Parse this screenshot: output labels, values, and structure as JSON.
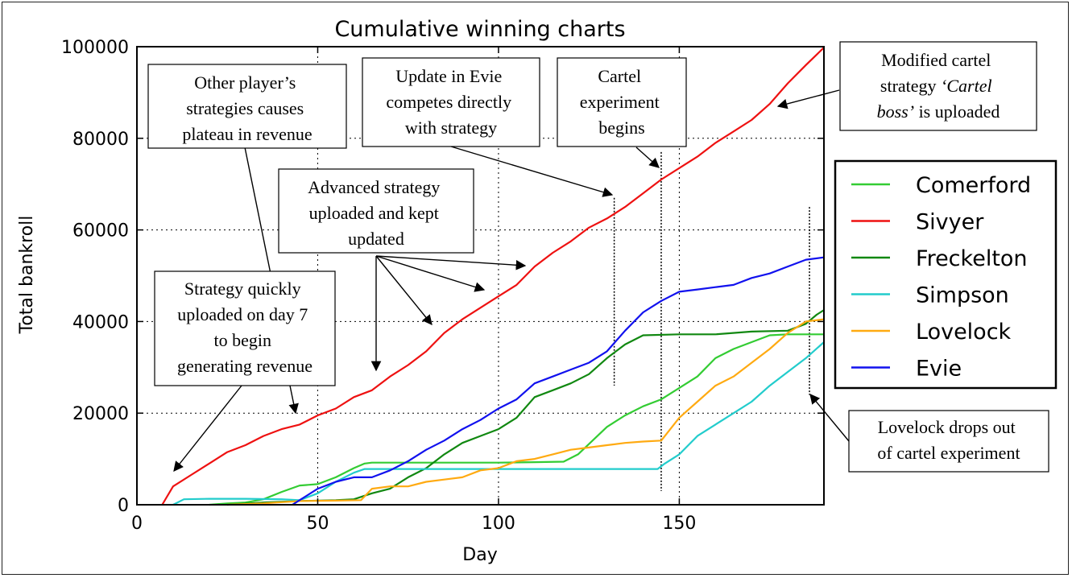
{
  "chart_data": {
    "type": "line",
    "title": "Cumulative winning charts",
    "xlabel": "Day",
    "ylabel": "Total bankroll",
    "xlim": [
      0,
      190
    ],
    "ylim": [
      0,
      100000
    ],
    "xticks": [
      0,
      50,
      100,
      150
    ],
    "yticks": [
      0,
      20000,
      40000,
      60000,
      80000,
      100000
    ],
    "grid": true,
    "legend_position": "right",
    "series": [
      {
        "name": "Comerford",
        "color": "#33cc33",
        "points": [
          [
            20,
            0
          ],
          [
            25,
            300
          ],
          [
            30,
            500
          ],
          [
            35,
            1200
          ],
          [
            40,
            2800
          ],
          [
            45,
            4200
          ],
          [
            50,
            4500
          ],
          [
            55,
            6000
          ],
          [
            60,
            8000
          ],
          [
            63,
            9000
          ],
          [
            65,
            9200
          ],
          [
            75,
            9200
          ],
          [
            85,
            9200
          ],
          [
            95,
            9200
          ],
          [
            100,
            9200
          ],
          [
            110,
            9300
          ],
          [
            118,
            9400
          ],
          [
            122,
            11000
          ],
          [
            126,
            14000
          ],
          [
            130,
            17000
          ],
          [
            135,
            19500
          ],
          [
            140,
            21500
          ],
          [
            145,
            23000
          ],
          [
            150,
            25500
          ],
          [
            155,
            28000
          ],
          [
            160,
            32000
          ],
          [
            165,
            34000
          ],
          [
            170,
            35500
          ],
          [
            175,
            37000
          ],
          [
            180,
            37200
          ],
          [
            190,
            37200
          ]
        ]
      },
      {
        "name": "Sivyer",
        "color": "#ee1111",
        "points": [
          [
            7,
            0
          ],
          [
            10,
            4000
          ],
          [
            15,
            6500
          ],
          [
            20,
            9000
          ],
          [
            25,
            11500
          ],
          [
            30,
            13000
          ],
          [
            35,
            15000
          ],
          [
            40,
            16500
          ],
          [
            45,
            17500
          ],
          [
            50,
            19500
          ],
          [
            55,
            21000
          ],
          [
            60,
            23500
          ],
          [
            65,
            25000
          ],
          [
            70,
            28000
          ],
          [
            75,
            30500
          ],
          [
            80,
            33500
          ],
          [
            85,
            37500
          ],
          [
            90,
            40500
          ],
          [
            95,
            43000
          ],
          [
            100,
            45500
          ],
          [
            105,
            48000
          ],
          [
            110,
            52000
          ],
          [
            115,
            55000
          ],
          [
            120,
            57500
          ],
          [
            125,
            60500
          ],
          [
            130,
            62500
          ],
          [
            135,
            65000
          ],
          [
            140,
            68000
          ],
          [
            145,
            71000
          ],
          [
            150,
            73500
          ],
          [
            155,
            76000
          ],
          [
            160,
            79000
          ],
          [
            165,
            81500
          ],
          [
            170,
            84000
          ],
          [
            175,
            87500
          ],
          [
            180,
            92000
          ],
          [
            185,
            96000
          ],
          [
            190,
            99800
          ]
        ]
      },
      {
        "name": "Freckelton",
        "color": "#118811",
        "points": [
          [
            25,
            0
          ],
          [
            35,
            500
          ],
          [
            45,
            800
          ],
          [
            55,
            1000
          ],
          [
            60,
            1200
          ],
          [
            65,
            2500
          ],
          [
            70,
            3500
          ],
          [
            75,
            6000
          ],
          [
            80,
            8000
          ],
          [
            85,
            11000
          ],
          [
            90,
            13500
          ],
          [
            95,
            15000
          ],
          [
            100,
            16500
          ],
          [
            105,
            19000
          ],
          [
            110,
            23500
          ],
          [
            115,
            25000
          ],
          [
            120,
            26500
          ],
          [
            125,
            28500
          ],
          [
            130,
            32000
          ],
          [
            135,
            35000
          ],
          [
            140,
            37000
          ],
          [
            150,
            37200
          ],
          [
            160,
            37200
          ],
          [
            170,
            37800
          ],
          [
            180,
            38000
          ],
          [
            185,
            39500
          ],
          [
            188,
            41500
          ],
          [
            190,
            42500
          ]
        ]
      },
      {
        "name": "Simpson",
        "color": "#22cccc",
        "points": [
          [
            10,
            0
          ],
          [
            13,
            1200
          ],
          [
            20,
            1300
          ],
          [
            30,
            1300
          ],
          [
            40,
            1200
          ],
          [
            45,
            1000
          ],
          [
            50,
            2500
          ],
          [
            55,
            5000
          ],
          [
            60,
            7000
          ],
          [
            63,
            7800
          ],
          [
            70,
            7800
          ],
          [
            80,
            7800
          ],
          [
            90,
            7800
          ],
          [
            100,
            7800
          ],
          [
            110,
            7800
          ],
          [
            120,
            7800
          ],
          [
            130,
            7800
          ],
          [
            140,
            7800
          ],
          [
            144,
            7800
          ],
          [
            146,
            9000
          ],
          [
            150,
            11000
          ],
          [
            155,
            15000
          ],
          [
            160,
            17500
          ],
          [
            165,
            20000
          ],
          [
            170,
            22500
          ],
          [
            175,
            26000
          ],
          [
            180,
            29000
          ],
          [
            185,
            32000
          ],
          [
            190,
            35500
          ]
        ]
      },
      {
        "name": "Lovelock",
        "color": "#ffaa11",
        "points": [
          [
            25,
            0
          ],
          [
            35,
            300
          ],
          [
            45,
            800
          ],
          [
            55,
            900
          ],
          [
            62,
            1000
          ],
          [
            65,
            3500
          ],
          [
            70,
            4000
          ],
          [
            75,
            4000
          ],
          [
            80,
            5000
          ],
          [
            85,
            5500
          ],
          [
            90,
            6000
          ],
          [
            95,
            7500
          ],
          [
            100,
            8000
          ],
          [
            105,
            9500
          ],
          [
            110,
            10000
          ],
          [
            115,
            11000
          ],
          [
            120,
            12000
          ],
          [
            125,
            12500
          ],
          [
            130,
            13000
          ],
          [
            135,
            13500
          ],
          [
            140,
            13800
          ],
          [
            145,
            14000
          ],
          [
            150,
            19000
          ],
          [
            155,
            22500
          ],
          [
            160,
            26000
          ],
          [
            165,
            28000
          ],
          [
            170,
            31000
          ],
          [
            175,
            34000
          ],
          [
            180,
            37500
          ],
          [
            185,
            40000
          ],
          [
            190,
            40500
          ]
        ]
      },
      {
        "name": "Evie",
        "color": "#1111ee",
        "points": [
          [
            43,
            0
          ],
          [
            45,
            1000
          ],
          [
            50,
            3500
          ],
          [
            55,
            5000
          ],
          [
            60,
            6000
          ],
          [
            65,
            6000
          ],
          [
            70,
            7500
          ],
          [
            75,
            9500
          ],
          [
            80,
            12000
          ],
          [
            85,
            14000
          ],
          [
            90,
            16500
          ],
          [
            95,
            18500
          ],
          [
            100,
            21000
          ],
          [
            105,
            23000
          ],
          [
            110,
            26500
          ],
          [
            115,
            28000
          ],
          [
            120,
            29500
          ],
          [
            125,
            31000
          ],
          [
            130,
            33500
          ],
          [
            135,
            38000
          ],
          [
            140,
            42000
          ],
          [
            145,
            44500
          ],
          [
            150,
            46500
          ],
          [
            155,
            47000
          ],
          [
            160,
            47500
          ],
          [
            165,
            48000
          ],
          [
            170,
            49500
          ],
          [
            175,
            50500
          ],
          [
            180,
            52000
          ],
          [
            185,
            53500
          ],
          [
            190,
            54000
          ]
        ]
      }
    ],
    "vertical_markers": [
      {
        "x": 132,
        "y_from": 26000,
        "y_to": 67000
      },
      {
        "x": 145,
        "y_from": 3000,
        "y_to": 77000
      },
      {
        "x": 186,
        "y_from": 24000,
        "y_to": 65000
      }
    ],
    "annotations": [
      {
        "lines": [
          "Other player’s",
          "strategies causes",
          "plateau in revenue"
        ],
        "italic_ranges": []
      },
      {
        "lines": [
          "Update in Evie",
          "competes directly",
          "with strategy"
        ]
      },
      {
        "lines": [
          "Cartel",
          "experiment",
          "begins"
        ]
      },
      {
        "lines": [
          "Modified cartel",
          "strategy ",
          "‘Cartel",
          "boss’",
          " is uploaded"
        ]
      },
      {
        "lines": [
          "Advanced strategy",
          "uploaded and kept",
          "updated"
        ]
      },
      {
        "lines": [
          "Strategy quickly",
          "uploaded on day 7",
          "to begin",
          "generating revenue"
        ]
      },
      {
        "lines": [
          "Lovelock drops out",
          "of cartel experiment"
        ]
      }
    ]
  }
}
